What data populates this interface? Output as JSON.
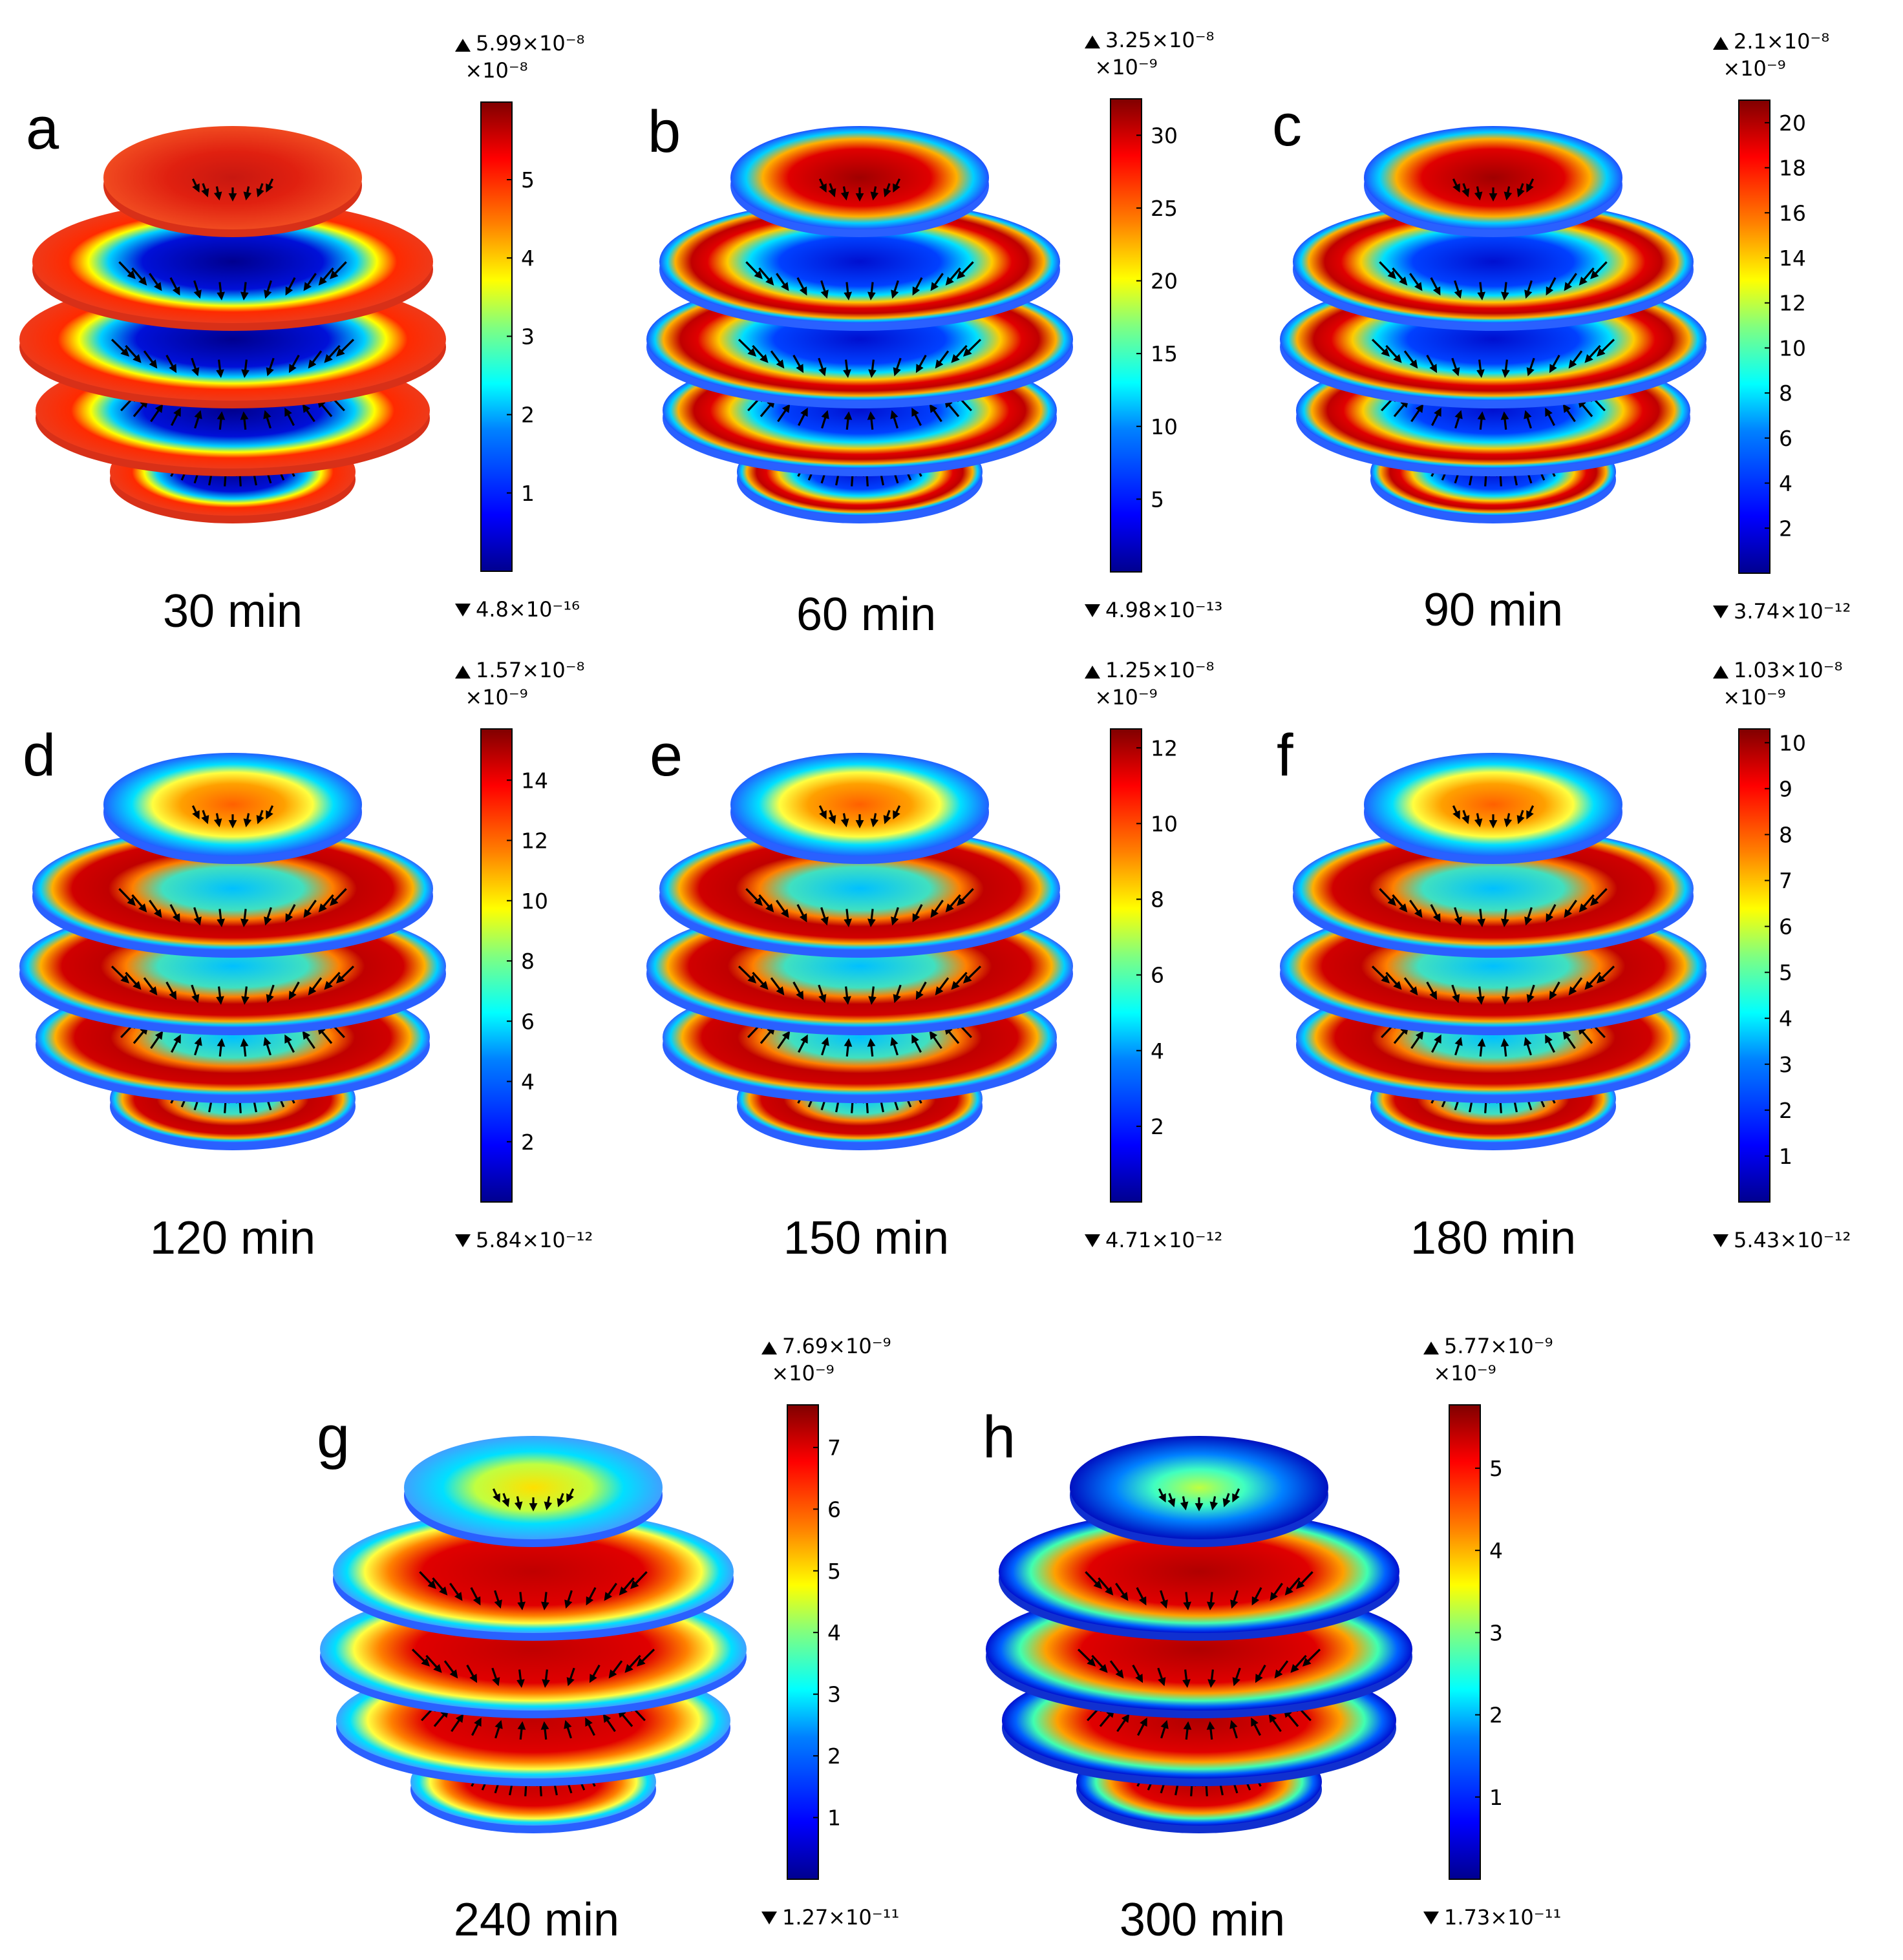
{
  "panels": [
    {
      "letter": "a",
      "time": "30 min",
      "max": "5.99×10⁻⁸",
      "multiplier": "×10⁻⁸",
      "min": "4.8×10⁻¹⁶",
      "cb_max": 5.99,
      "ticks": [
        1,
        2,
        3,
        4,
        5
      ],
      "disk_inner_color": [
        "#00008b",
        "#00008b",
        "#00008b",
        "#0a20d0",
        "#ff3300"
      ],
      "top_fill": "#e83015",
      "style": "early"
    },
    {
      "letter": "b",
      "time": "60 min",
      "max": "3.25×10⁻⁸",
      "multiplier": "×10⁻⁹",
      "min": "4.98×10⁻¹³",
      "cb_max": 32.5,
      "ticks": [
        5,
        10,
        15,
        20,
        25,
        30
      ],
      "style": "mid"
    },
    {
      "letter": "c",
      "time": "90 min",
      "max": "2.1×10⁻⁸",
      "multiplier": "×10⁻⁹",
      "min": "3.74×10⁻¹²",
      "cb_max": 21.0,
      "ticks": [
        2,
        4,
        6,
        8,
        10,
        12,
        14,
        16,
        18,
        20
      ],
      "style": "mid"
    },
    {
      "letter": "d",
      "time": "120 min",
      "max": "1.57×10⁻⁸",
      "multiplier": "×10⁻⁹",
      "min": "5.84×10⁻¹²",
      "cb_max": 15.7,
      "ticks": [
        2,
        4,
        6,
        8,
        10,
        12,
        14
      ],
      "style": "late"
    },
    {
      "letter": "e",
      "time": "150 min",
      "max": "1.25×10⁻⁸",
      "multiplier": "×10⁻⁹",
      "min": "4.71×10⁻¹²",
      "cb_max": 12.5,
      "ticks": [
        2,
        4,
        6,
        8,
        10,
        12
      ],
      "style": "late"
    },
    {
      "letter": "f",
      "time": "180 min",
      "max": "1.03×10⁻⁸",
      "multiplier": "×10⁻⁹",
      "min": "5.43×10⁻¹²",
      "cb_max": 10.3,
      "ticks": [
        1,
        2,
        3,
        4,
        5,
        6,
        7,
        8,
        9,
        10
      ],
      "style": "late"
    },
    {
      "letter": "g",
      "time": "240 min",
      "max": "7.69×10⁻⁹",
      "multiplier": "×10⁻⁹",
      "min": "1.27×10⁻¹¹",
      "cb_max": 7.69,
      "ticks": [
        1,
        2,
        3,
        4,
        5,
        6,
        7
      ],
      "style": "latest"
    },
    {
      "letter": "h",
      "time": "300 min",
      "max": "5.77×10⁻⁹",
      "multiplier": "×10⁻⁹",
      "min": "1.73×10⁻¹¹",
      "cb_max": 5.77,
      "ticks": [
        1,
        2,
        3,
        4,
        5
      ],
      "style": "final"
    }
  ],
  "colormap": [
    "#00008f",
    "#0000ff",
    "#0080ff",
    "#00ffff",
    "#80ff80",
    "#ffff00",
    "#ff8000",
    "#ff0000",
    "#800000"
  ]
}
